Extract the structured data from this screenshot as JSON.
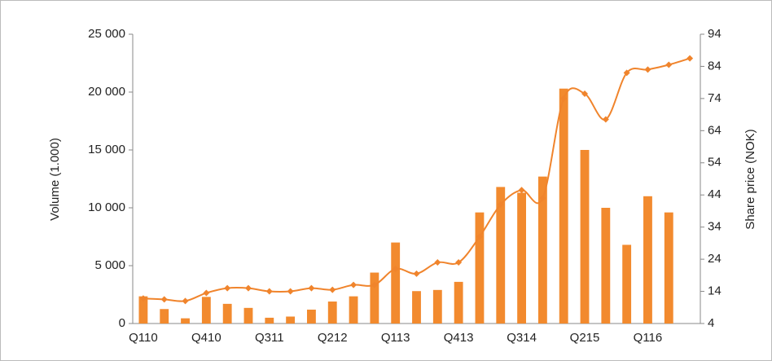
{
  "chart_data": {
    "type": "bar_line",
    "y_label": "Volume (1.000)",
    "y2_label": "Share price (NOK)",
    "categories": [
      "Q110",
      null,
      null,
      "Q410",
      null,
      null,
      "Q311",
      null,
      null,
      "Q212",
      null,
      null,
      "Q113",
      null,
      null,
      "Q413",
      null,
      null,
      "Q314",
      null,
      null,
      "Q215",
      null,
      null,
      "Q116",
      null,
      null
    ],
    "series": [
      {
        "name": "Volume",
        "type": "bar",
        "color": "#f28a2e",
        "values": [
          2350,
          1250,
          450,
          2300,
          1700,
          1350,
          500,
          600,
          1200,
          1900,
          2350,
          4400,
          7000,
          2800,
          2900,
          3600,
          9600,
          11800,
          11300,
          12700,
          20300,
          15000,
          10000,
          6800,
          11000,
          9600,
          null
        ]
      },
      {
        "name": "Share price",
        "type": "line",
        "axis": "y2",
        "color": "#f0842c",
        "values": [
          11.8,
          11.5,
          11,
          13.5,
          15,
          15,
          14,
          14,
          15,
          14.5,
          16,
          16,
          21,
          19.5,
          23,
          23,
          31,
          41,
          45.5,
          43,
          74,
          75.5,
          67.5,
          82,
          83,
          84.5,
          86.5
        ]
      }
    ],
    "ylim": [
      0,
      25000
    ],
    "yticks": [
      0,
      {
        "value": 5000,
        "label": "5 000"
      },
      {
        "value": 10000,
        "label": "10 000"
      },
      {
        "value": 15000,
        "label": "15 000"
      },
      {
        "value": 20000,
        "label": "20 000"
      },
      {
        "value": 25000,
        "label": "25 000"
      }
    ],
    "y2lim": [
      4,
      94
    ],
    "y2ticks": [
      4,
      14,
      24,
      34,
      44,
      54,
      64,
      74,
      84,
      94
    ]
  }
}
